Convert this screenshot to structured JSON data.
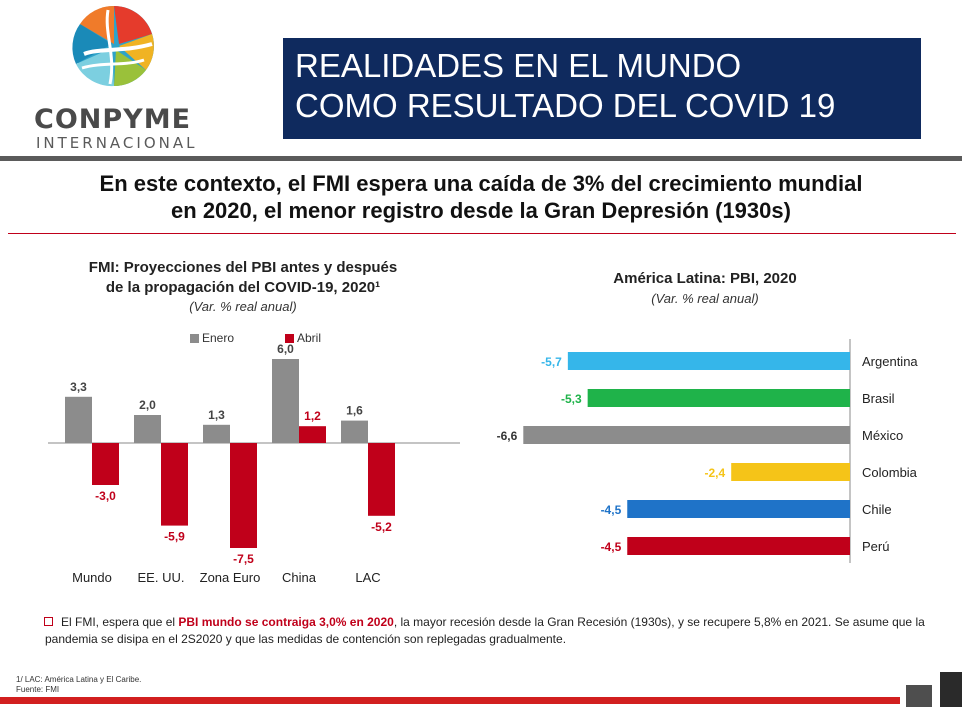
{
  "brand": {
    "name": "CONPYME",
    "subtitle": "INTERNACIONAL"
  },
  "banner": {
    "line1": "REALIDADES EN EL MUNDO",
    "line2": "COMO RESULTADO DEL COVID 19"
  },
  "headline": {
    "line1": "En este contexto, el FMI espera una caída de 3% del crecimiento mundial",
    "line2": "en 2020, el menor registro desde la Gran Depresión (1930s)"
  },
  "colors": {
    "banner_bg": "#0f2a5e",
    "accent_red": "#c0001a",
    "bar_grey": "#8c8c8c"
  },
  "chart_data": [
    {
      "type": "bar",
      "title_line1": "FMI: Proyecciones del PBI antes y después",
      "title_line2": "de la propagación del COVID-19, 2020¹",
      "subtitle": "(Var. % real anual)",
      "categories": [
        "Mundo",
        "EE. UU.",
        "Zona Euro",
        "China",
        "LAC"
      ],
      "series": [
        {
          "name": "Enero",
          "color": "#8c8c8c",
          "values": [
            3.3,
            2.0,
            1.3,
            6.0,
            1.6
          ]
        },
        {
          "name": "Abril",
          "color": "#c0001a",
          "values": [
            -3.0,
            -5.9,
            -7.5,
            1.2,
            -5.2
          ]
        }
      ],
      "value_labels": {
        "Enero": [
          "3,3",
          "2,0",
          "1,3",
          "6,0",
          "1,6"
        ],
        "Abril": [
          "-3,0",
          "-5,9",
          "-7,5",
          "1,2",
          "-5,2"
        ]
      },
      "legend_position": "top",
      "grid": false
    },
    {
      "type": "bar",
      "orientation": "horizontal",
      "title": "América Latina: PBI, 2020",
      "subtitle": "(Var. % real anual)",
      "categories": [
        "Argentina",
        "Brasil",
        "México",
        "Colombia",
        "Chile",
        "Perú"
      ],
      "values": [
        -5.7,
        -5.3,
        -6.6,
        -2.4,
        -4.5,
        -4.5
      ],
      "value_labels": [
        "-5,7",
        "-5,3",
        "-6,6",
        "-2,4",
        "-4,5",
        "-4,5"
      ],
      "colors": [
        "#35b6ea",
        "#1fb34a",
        "#8c8c8c",
        "#f5c418",
        "#1f73c8",
        "#c0001a"
      ],
      "label_colors": [
        "#35b6ea",
        "#1fb34a",
        "#333333",
        "#f5c418",
        "#1f73c8",
        "#c0001a"
      ],
      "grid": false
    }
  ],
  "note": {
    "pre": "El FMI, espera que el ",
    "highlight": "PBI mundo se contraiga 3,0% en 2020",
    "post": ", la mayor recesión desde la Gran Recesión (1930s), y se recupere 5,8% en 2021. Se asume que la pandemia se disipa en el 2S2020 y que las medidas de contención son replegadas gradualmente."
  },
  "footnotes": {
    "lac": "1/ LAC: América Latina y El Caribe.",
    "source": "Fuente: FMI"
  }
}
